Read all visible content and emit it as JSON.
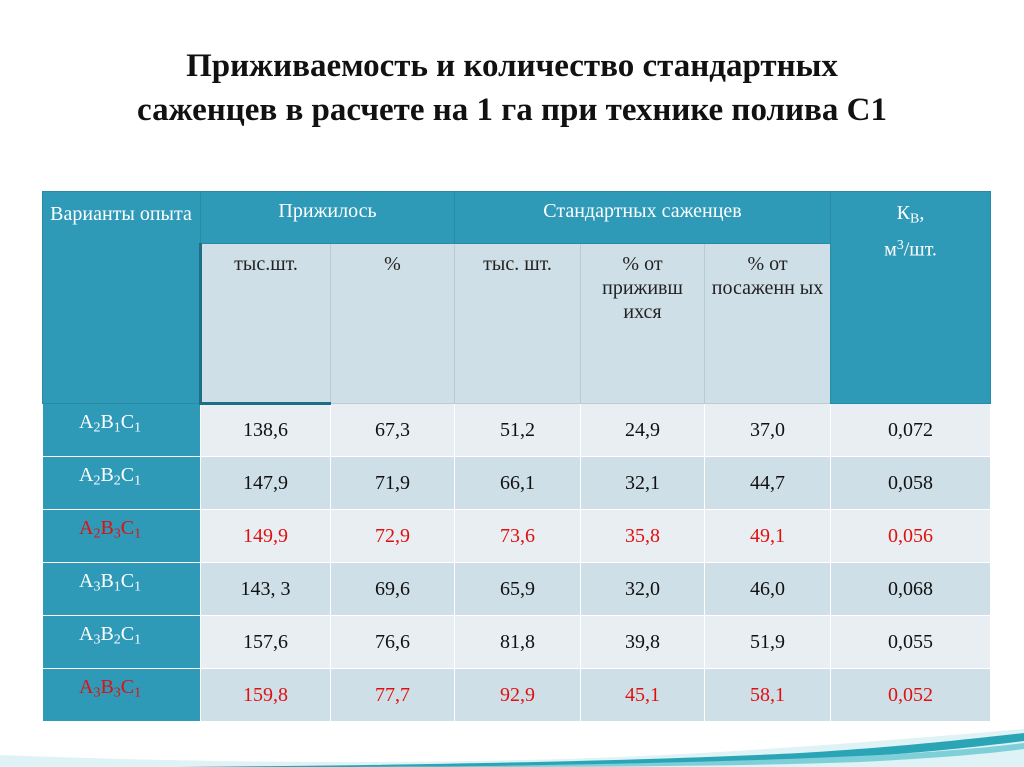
{
  "title": {
    "line1": "Приживаемость и количество стандартных",
    "line2": "саженцев в расчете на 1 га при технике полива С1"
  },
  "header": {
    "variants": "Варианты опыта",
    "survived": "Прижилось",
    "standard": "Стандартных саженцев",
    "kv_main": "К",
    "kv_sub": "В",
    "kv_comma": ",",
    "kv_unit_a": "м",
    "kv_unit_sup": "3",
    "kv_unit_b": "/шт.",
    "sub": [
      "тыс.шт.",
      "%",
      "тыс. шт.",
      "% от приживш ихся",
      "% от посаженн ых"
    ]
  },
  "rows": [
    {
      "a": "A",
      "a_sub": "2",
      "b": "B",
      "b_sub": "1",
      "c": "C",
      "c_sub": "1",
      "values": [
        "138,6",
        "67,3",
        "51,2",
        "24,9",
        "37,0",
        "0,072"
      ],
      "highlight": false
    },
    {
      "a": "A",
      "a_sub": "2",
      "b": "B",
      "b_sub": "2",
      "c": "C",
      "c_sub": "1",
      "values": [
        "147,9",
        "71,9",
        "66,1",
        "32,1",
        "44,7",
        "0,058"
      ],
      "highlight": false
    },
    {
      "a": "A",
      "a_sub": "2",
      "b": "B",
      "b_sub": "3",
      "c": "C",
      "c_sub": "1",
      "values": [
        "149,9",
        "72,9",
        "73,6",
        "35,8",
        "49,1",
        "0,056"
      ],
      "highlight": true
    },
    {
      "a": "A",
      "a_sub": "3",
      "b": "B",
      "b_sub": "1",
      "c": "C",
      "c_sub": "1",
      "values": [
        "143, 3",
        "69,6",
        "65,9",
        "32,0",
        "46,0",
        "0,068"
      ],
      "highlight": false
    },
    {
      "a": "A",
      "a_sub": "3",
      "b": "B",
      "b_sub": "2",
      "c": "C",
      "c_sub": "1",
      "values": [
        "157,6",
        "76,6",
        "81,8",
        "39,8",
        "51,9",
        "0,055"
      ],
      "highlight": false
    },
    {
      "a": "A",
      "a_sub": "3",
      "b": "B",
      "b_sub": "3",
      "c": "C",
      "c_sub": "1",
      "values": [
        "159,8",
        "77,7",
        "92,9",
        "45,1",
        "58,1",
        "0,052"
      ],
      "highlight": true
    }
  ],
  "colors": {
    "header_blue": "#2e9ab8",
    "cell_light": "#e8eef1",
    "cell_mid": "#cfdfe7",
    "highlight_red": "#e01010",
    "deco_teal": "#2aa5b5"
  },
  "decoration": "wave-swoosh"
}
